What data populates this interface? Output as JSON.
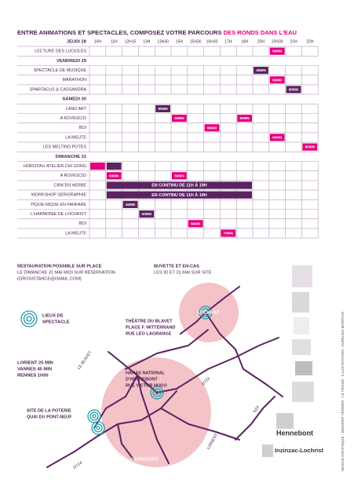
{
  "header": {
    "title": "ENTRE ANIMATIONS ET SPECTACLES, COMPOSEZ VOTRE PARCOURS",
    "highlight": "DES RONDS DANS L'EAU"
  },
  "schedule": {
    "times": [
      "10H",
      "11H",
      "12H15",
      "13H",
      "13H30",
      "15H",
      "15H30",
      "16H30",
      "17H",
      "18H",
      "20H",
      "20H30",
      "21H",
      "22H"
    ],
    "days": [
      {
        "label": "JEUDI 28",
        "rows": [
          {
            "label": "LECTURE DES LUCIOLES",
            "events": [
              {
                "time": 11,
                "text": "60MN",
                "color": "#e4007c"
              }
            ]
          }
        ]
      },
      {
        "label": "VENDREDI 29",
        "rows": [
          {
            "label": "SPECTACLE DE MUSIQUE",
            "events": [
              {
                "time": 10,
                "text": "45MN",
                "color": "#5a2460"
              }
            ]
          },
          {
            "label": "MARATHON",
            "events": [
              {
                "time": 11,
                "text": "60MN",
                "color": "#e4007c"
              }
            ]
          },
          {
            "label": "SPARTACUS & CASSANDRA",
            "events": [
              {
                "time": 12,
                "text": "80MN",
                "color": "#5a2460"
              }
            ]
          }
        ]
      },
      {
        "label": "SAMEDI 30",
        "rows": [
          {
            "label": "LAND ART",
            "events": [
              {
                "time": 4,
                "text": "90MN",
                "color": "#5a2460"
              }
            ]
          },
          {
            "label": "A ROVESCIO",
            "events": [
              {
                "time": 5,
                "text": "60MN",
                "color": "#e4007c"
              },
              {
                "time": 9,
                "text": "60MN",
                "color": "#e4007c"
              }
            ]
          },
          {
            "label": "BOI",
            "events": [
              {
                "time": 7,
                "text": "60MN",
                "color": "#e4007c"
              }
            ]
          },
          {
            "label": "LA MEUTE",
            "events": [
              {
                "time": 11,
                "text": "60MN",
                "color": "#e4007c"
              }
            ]
          },
          {
            "label": "LES MELTING POTES",
            "events": [
              {
                "time": 13,
                "text": "60MN",
                "color": "#e4007c"
              }
            ]
          }
        ]
      },
      {
        "label": "DIMANCHE 31",
        "rows": [
          {
            "label": "HORIZON+ ATELIER CHI GONG",
            "events": [
              {
                "time": 0,
                "color": "#e4007c"
              },
              {
                "time": 1,
                "color": "#5a2460"
              }
            ]
          },
          {
            "label": "A ROVESCIO",
            "events": [
              {
                "time": 1,
                "text": "60MN",
                "color": "#e4007c"
              },
              {
                "time": 5,
                "text": "60MN",
                "color": "#e4007c"
              }
            ]
          },
          {
            "label": "CIRK'EN HERBE",
            "events": [
              {
                "time": 1,
                "until": 9,
                "text": "EN CONTINU DE 11H À 19H",
                "color": "#5a2460"
              }
            ]
          },
          {
            "label": "WORKSHOP SÉRIGRAPHIE",
            "events": [
              {
                "time": 1,
                "until": 9,
                "text": "EN CONTINU DE 11H À 19H",
                "color": "#5a2460"
              }
            ]
          },
          {
            "label": "PIQUE-NIQUE EN FANFARE",
            "events": [
              {
                "time": 2,
                "text": "45MN",
                "color": "#5a2460"
              }
            ]
          },
          {
            "label": "L'HARMONIE DE LOCHRIST",
            "events": [
              {
                "time": 3,
                "text": "60MN",
                "color": "#5a2460"
              }
            ]
          },
          {
            "label": "BOI",
            "events": [
              {
                "time": 6,
                "text": "60MN",
                "color": "#e4007c"
              }
            ]
          },
          {
            "label": "LA MEUTE",
            "events": [
              {
                "time": 8,
                "text": "70MN",
                "color": "#e4007c"
              }
            ]
          }
        ]
      }
    ]
  },
  "info": {
    "restauration": [
      "RESTAURATION POSSIBLE SUR PLACE",
      "LE DIMANCHE 31 MAI MIDI SUR RÉSERVATION",
      "(GROSISTANCE@GMAIL.COM)"
    ],
    "buvette": [
      "BUVETTE ET EN-CAS",
      "LES 30 ET 31 MAI SUR SITE"
    ]
  },
  "map": {
    "legend": [
      "LIEUX DE",
      "SPECTACLE"
    ],
    "lochrist": "LOCHRIST",
    "theatre": [
      "THÉÂTRE DU BLAVET",
      "PLACE F. MITTERRAND",
      "RUE LÉO LAGRANGE"
    ],
    "distances": [
      "LORIENT 25 MIN",
      "VANNES 45 MIN",
      "RENNES 1H30"
    ],
    "haras": [
      "HARAS NATIONAL",
      "D'HENNEBONT",
      "RUE VICTOR HUGO"
    ],
    "poterie": [
      "SITE DE LA POTERIE",
      "QUAI DU PONT-NEUF"
    ],
    "hennebont": "HENNEBONT",
    "blavet": "LE BLAVET",
    "d724a": "D724",
    "d724b": "D724",
    "n24": "N24",
    "lorient": "LORIENT"
  },
  "logos": {
    "hennebont": "Hennebont",
    "inzinzac": "Inzinzac-Lochrist"
  },
  "credits": "DESIGN GRAPHIQUE : JENNIFER VERDIER · LE TRIAGE · ILLUSTRATIONS : AURÉLIEN MORFAUX"
}
